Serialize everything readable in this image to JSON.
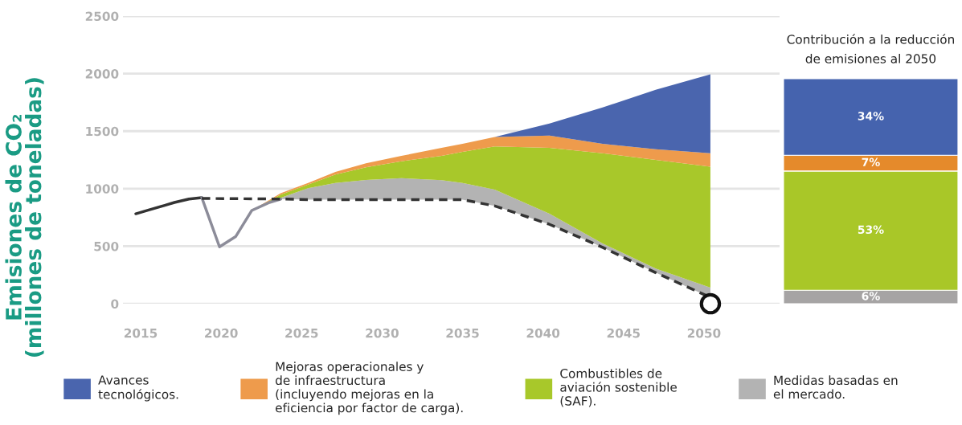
{
  "chart_data": [
    {
      "type": "area",
      "ylabel": "Emisiones de CO₂\n(millones de toneladas)",
      "x": [
        2021.9,
        2023.7,
        2025.4,
        2027.1,
        2029.0,
        2031.2,
        2033.7,
        2035.0,
        2037.0,
        2040.4,
        2043.7,
        2047.0,
        2050.4
      ],
      "xlim": [
        2013.9,
        2054.7
      ],
      "xticks": [
        2015,
        2020,
        2025,
        2030,
        2035,
        2040,
        2045,
        2050
      ],
      "ylim": [
        0,
        2500
      ],
      "yticks": [
        0,
        500,
        1000,
        1500,
        2000,
        2500
      ],
      "grid": "y",
      "legend": "bottom",
      "series": [
        {
          "type": "area",
          "name": "Medidas basadas en\nel mercado.",
          "color": "#b3b3b3",
          "values": [
            810,
            920,
            1004,
            1050,
            1075,
            1091,
            1074,
            1050,
            992,
            782,
            524,
            305,
            140
          ]
        },
        {
          "type": "area",
          "name": "Combustibles de\naviación sostenible\n(SAF).",
          "color": "#a8c82a",
          "values": [
            810,
            948,
            1035,
            1123,
            1185,
            1238,
            1285,
            1320,
            1367,
            1355,
            1308,
            1250,
            1191
          ]
        },
        {
          "type": "area",
          "name": "Mejoras operacionales y\nde infraestructura\n(incluyendo mejoras en la\neficiencia por factor de carga).",
          "color": "#ee9b4c",
          "values": [
            810,
            961,
            1050,
            1145,
            1220,
            1285,
            1355,
            1390,
            1449,
            1461,
            1390,
            1343,
            1308
          ]
        },
        {
          "type": "area",
          "name": "Avances\ntecnológicos.",
          "color": "#4a65ae",
          "x": [
            2037.0,
            2040.4,
            2043.7,
            2047.0,
            2050.4
          ],
          "values": [
            1449,
            1566,
            1706,
            1859,
            1994
          ]
        },
        {
          "type": "line",
          "color": "#333333",
          "line_style": "solid",
          "x": [
            2014.7,
            2015.5,
            2016.5,
            2017.1,
            2018.0,
            2018.8
          ],
          "values": [
            782,
            815,
            855,
            880,
            910,
            922
          ]
        },
        {
          "type": "line",
          "color": "#8c8c99",
          "line_style": "solid",
          "x": [
            2018.8,
            2019.9,
            2020.9,
            2021.9,
            2023.0,
            2023.7
          ],
          "values": [
            922,
            494,
            583,
            810,
            880,
            910
          ]
        },
        {
          "type": "line",
          "color": "#333333",
          "line_style": "dashed",
          "x": [
            2018.8,
            2023.7,
            2025.4,
            2027.1,
            2029.0,
            2031.2,
            2033.7,
            2035.0,
            2037.0,
            2040.4,
            2043.7,
            2047.0,
            2050.4
          ],
          "values": [
            915,
            910,
            905,
            905,
            905,
            905,
            905,
            905,
            850,
            690,
            490,
            270,
            55
          ]
        },
        {
          "type": "scatter",
          "color": "#111111",
          "marker": "circle",
          "x": [
            2050.4
          ],
          "values": [
            0
          ]
        }
      ]
    },
    {
      "type": "bar",
      "stacked": true,
      "title": "Contribución a la reducción\nde emisiones al 2050",
      "categories": [
        null
      ],
      "ylim": [
        0,
        100
      ],
      "tick_labels": false,
      "series": [
        {
          "color": "#a6a4a4",
          "values": [
            6
          ],
          "value_labels": [
            "6%"
          ]
        },
        {
          "color": "#a9c728",
          "values": [
            53
          ],
          "value_labels": [
            "53%"
          ]
        },
        {
          "color": "#e58a2b",
          "values": [
            7
          ],
          "value_labels": [
            "7%"
          ]
        },
        {
          "color": "#4563ae",
          "values": [
            34
          ],
          "value_labels": [
            "34%"
          ]
        }
      ]
    }
  ]
}
